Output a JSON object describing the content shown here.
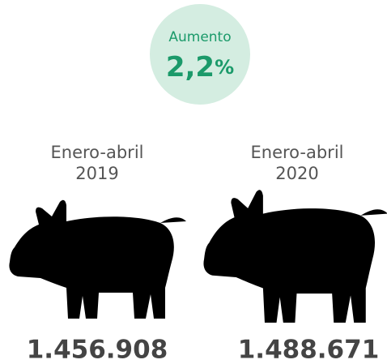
{
  "increase": {
    "label": "Aumento",
    "value": "2,2",
    "unit": "%"
  },
  "periods": [
    {
      "period": "Enero-abril",
      "year": "2019",
      "value": "1.456.908"
    },
    {
      "period": "Enero-abril",
      "year": "2020",
      "value": "1.488.671"
    }
  ]
}
